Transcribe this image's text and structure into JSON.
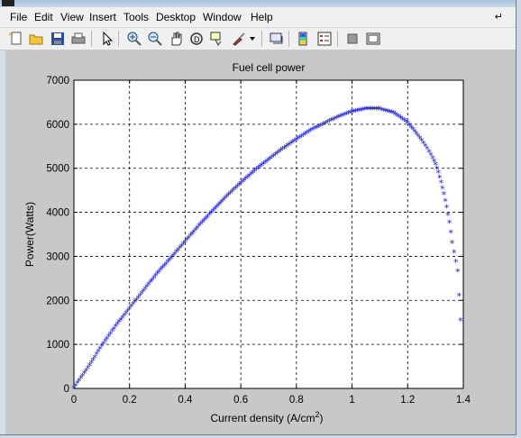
{
  "menu": {
    "items": [
      "File",
      "Edit",
      "View",
      "Insert",
      "Tools",
      "Desktop",
      "Window",
      "Help"
    ]
  },
  "toolbar": {
    "icons": [
      "new-figure-icon",
      "open-file-icon",
      "save-icon",
      "print-icon",
      "select-arrow-icon",
      "zoom-in-icon",
      "zoom-out-icon",
      "pan-hand-icon",
      "rotate-3d-icon",
      "data-cursor-icon",
      "brush-icon",
      "brush-dropdown-icon",
      "link-plot-icon",
      "colorbar-icon",
      "legend-icon",
      "hide-plot-tools-icon",
      "show-plot-tools-icon"
    ]
  },
  "colors": {
    "marker": "#1a1acc",
    "figure_bg": "#c8c8c8",
    "axes_bg": "#ffffff"
  },
  "chart_data": {
    "type": "scatter",
    "title": "Fuel cell power",
    "xlabel": "Current density (A/cm",
    "xlabel_sup": "2",
    "xlabel_end": ")",
    "ylabel": "Power(Watts)",
    "xlim": [
      0,
      1.4
    ],
    "ylim": [
      0,
      7000
    ],
    "grid": true,
    "marker": "*",
    "xticks": [
      "0",
      "0.2",
      "0.4",
      "0.6",
      "0.8",
      "1",
      "1.2",
      "1.4"
    ],
    "yticks": [
      "0",
      "1000",
      "2000",
      "3000",
      "4000",
      "5000",
      "6000",
      "7000"
    ],
    "series": [
      {
        "x": [
          0.0,
          0.05,
          0.1,
          0.15,
          0.2,
          0.25,
          0.3,
          0.35,
          0.4,
          0.45,
          0.5,
          0.55,
          0.6,
          0.65,
          0.7,
          0.75,
          0.8,
          0.85,
          0.9,
          0.95,
          1.0,
          1.05,
          1.1,
          1.15,
          1.2,
          1.25,
          1.27,
          1.29,
          1.3,
          1.31,
          1.32,
          1.33,
          1.34,
          1.35,
          1.36,
          1.38,
          1.39
        ],
        "y": [
          0,
          450,
          950,
          1400,
          1800,
          2200,
          2600,
          2950,
          3320,
          3680,
          4020,
          4350,
          4650,
          4930,
          5180,
          5420,
          5640,
          5840,
          6000,
          6150,
          6270,
          6330,
          6330,
          6240,
          6020,
          5620,
          5430,
          5220,
          5080,
          4890,
          4670,
          4400,
          4100,
          3760,
          3300,
          2650,
          1540
        ]
      }
    ]
  }
}
